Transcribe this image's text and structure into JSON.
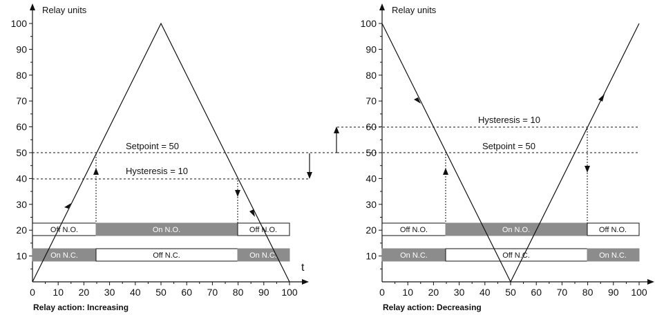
{
  "y_label": "Relay units",
  "x_label": "t",
  "x_ticks": [
    "0",
    "10",
    "20",
    "30",
    "40",
    "50",
    "60",
    "70",
    "80",
    "90",
    "100"
  ],
  "y_ticks": [
    "10",
    "20",
    "30",
    "40",
    "50",
    "60",
    "70",
    "80",
    "90",
    "100"
  ],
  "colors": {
    "on_fill": "#8c8c8c",
    "off_fill": "#ffffff",
    "line": "#111111"
  },
  "left": {
    "setpoint_label": "Setpoint = 50",
    "hysteresis_label": "Hysteresis = 10",
    "caption": "Relay action: Increasing",
    "setpoint": 50,
    "hysteresis_level": 40,
    "signal": [
      [
        0,
        0
      ],
      [
        50,
        100
      ],
      [
        100,
        0
      ]
    ],
    "switch_times": [
      25,
      80
    ],
    "no_row": [
      "Off N.O.",
      "On N.O.",
      "Off N.O."
    ],
    "nc_row": [
      "On N.C.",
      "Off N.C.",
      "On N.C."
    ]
  },
  "right": {
    "setpoint_label": "Setpoint = 50",
    "hysteresis_label": "Hysteresis = 10",
    "caption": "Relay action: Decreasing",
    "setpoint": 50,
    "hysteresis_level": 60,
    "signal": [
      [
        0,
        100
      ],
      [
        50,
        0
      ],
      [
        100,
        100
      ]
    ],
    "switch_times": [
      25,
      80
    ],
    "no_row": [
      "Off N.O.",
      "On N.O.",
      "Off N.O."
    ],
    "nc_row": [
      "On N.C.",
      "Off N.C.",
      "On N.C."
    ]
  }
}
